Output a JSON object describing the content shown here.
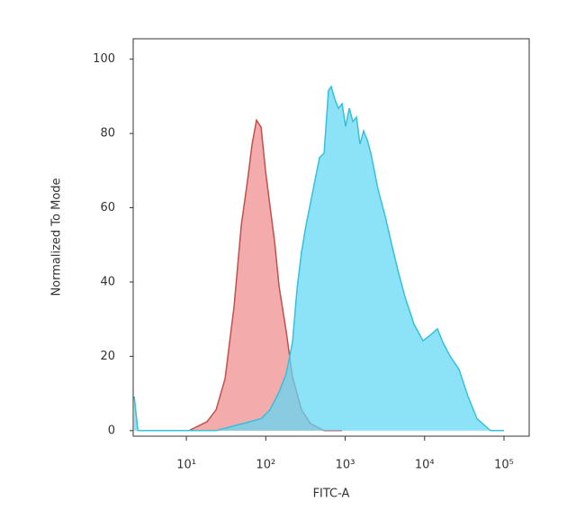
{
  "chart_data": {
    "type": "area",
    "xlabel": "FITC-A",
    "ylabel": "Normalized To Mode",
    "xscale": "log",
    "xlim": [
      2.14,
      207600
    ],
    "ylim": [
      -1.5,
      105.5
    ],
    "xticks": [
      {
        "value": 10,
        "label": "10¹"
      },
      {
        "value": 100,
        "label": "10²"
      },
      {
        "value": 1000,
        "label": "10³"
      },
      {
        "value": 10000,
        "label": "10⁴"
      },
      {
        "value": 100000,
        "label": "10⁵"
      }
    ],
    "yticks": [
      0,
      20,
      40,
      60,
      80,
      100
    ],
    "series": [
      {
        "color": "#f08a8a",
        "stroke": "#c0504d",
        "x": [
          6.4,
          10.8,
          18.2,
          23.7,
          30.7,
          39.9,
          49.1,
          59.0,
          67.1,
          76.5,
          87.3,
          99.3,
          113,
          129,
          147,
          181,
          217,
          282,
          366,
          542,
          913
        ],
        "values": [
          0,
          0,
          2.4,
          5.6,
          14,
          33.5,
          55.3,
          67.4,
          77,
          83.6,
          81.7,
          70,
          60.4,
          50.9,
          38.8,
          26.7,
          14.5,
          5.6,
          1.9,
          0,
          0
        ]
      },
      {
        "color": "#5fd8f5",
        "stroke": "#35c0dc",
        "x": [
          2.2,
          2.45,
          8.3,
          23.7,
          51.8,
          87.3,
          113,
          147,
          181,
          217,
          248,
          282,
          321,
          366,
          417,
          475,
          542,
          617,
          667,
          741,
          822,
          913,
          1013,
          1125,
          1248,
          1386,
          1538,
          1707,
          1895,
          2103,
          2592,
          3194,
          3937,
          4605,
          5675,
          7364,
          9555,
          11770,
          14500,
          16950,
          20890,
          27100,
          35240,
          45710,
          67600,
          100000
        ],
        "values": [
          9.2,
          0,
          0,
          0,
          1.9,
          3.2,
          5.6,
          10.4,
          15.3,
          23.8,
          38.3,
          48,
          55.3,
          61.3,
          67.4,
          73.5,
          74.7,
          91.6,
          92.6,
          89.2,
          86.8,
          88,
          81.9,
          86.8,
          83.2,
          84.4,
          77.1,
          80.7,
          78.3,
          74.7,
          65,
          57.7,
          49.2,
          43.2,
          35.9,
          28.6,
          24.2,
          25.7,
          27.4,
          23.8,
          20.1,
          16.5,
          9.2,
          3.2,
          0,
          0
        ]
      }
    ]
  }
}
